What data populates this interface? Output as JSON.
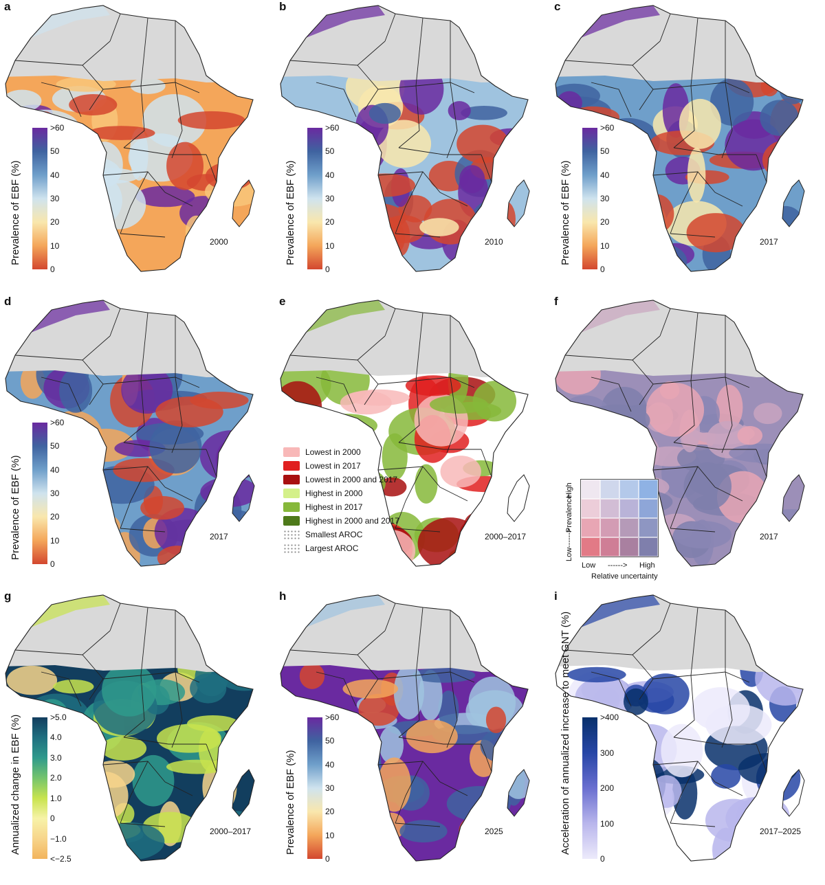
{
  "panels": [
    {
      "label": "a",
      "year": "2000",
      "scale": "ebf",
      "colorbar_title": "Prevalence of EBF (%)"
    },
    {
      "label": "b",
      "year": "2010",
      "scale": "ebf",
      "colorbar_title": "Prevalence of EBF (%)"
    },
    {
      "label": "c",
      "year": "2017",
      "scale": "ebf",
      "colorbar_title": "Prevalence of EBF (%)"
    },
    {
      "label": "d",
      "year": "2017",
      "scale": "ebf",
      "colorbar_title": "Prevalence of EBF (%)"
    },
    {
      "label": "e",
      "year": "2000–2017",
      "scale": "none",
      "colorbar_title": ""
    },
    {
      "label": "f",
      "year": "2017",
      "scale": "none",
      "colorbar_title": ""
    },
    {
      "label": "g",
      "year": "2000–2017",
      "scale": "change",
      "colorbar_title": "Annualized change in EBF (%)"
    },
    {
      "label": "h",
      "year": "2025",
      "scale": "ebf",
      "colorbar_title": "Prevalence of EBF (%)"
    },
    {
      "label": "i",
      "year": "2017–2025",
      "scale": "accel",
      "colorbar_title": "Acceleration of annualized increase to meet GNT (%)"
    }
  ],
  "scales": {
    "ebf": {
      "ticks": [
        ">60",
        "50",
        "40",
        "30",
        "20",
        "10",
        "0"
      ],
      "colors": [
        "#6a2aa0",
        "#3f63a0",
        "#6f9fca",
        "#cfe3ee",
        "#f9e7ad",
        "#f4a65a",
        "#d3472f"
      ]
    },
    "change": {
      "ticks": [
        ">5.0",
        "4.0",
        "3.0",
        "2.0",
        "1.0",
        "0",
        "−1.0",
        "<−2.5"
      ],
      "colors": [
        "#123e5e",
        "#1f6f80",
        "#2f9a8c",
        "#75c46d",
        "#c8e34e",
        "#f7f3a8",
        "#f7d58b",
        "#f2b45d"
      ]
    },
    "accel": {
      "ticks": [
        ">400",
        "300",
        "200",
        "100",
        "0"
      ],
      "colors": [
        "#08306b",
        "#2746a6",
        "#6a6fd0",
        "#b9b6ec",
        "#eceafb"
      ]
    }
  },
  "legend_e": [
    {
      "label": "Lowest in 2000",
      "color": "#f8b8b8"
    },
    {
      "label": "Lowest in 2017",
      "color": "#e02020"
    },
    {
      "label": "Lowest in 2000 and 2017",
      "color": "#a81010"
    },
    {
      "label": "Highest in 2000",
      "color": "#d4f08a"
    },
    {
      "label": "Highest in 2017",
      "color": "#86b83a"
    },
    {
      "label": "Highest in 2000 and 2017",
      "color": "#4e7a1a"
    },
    {
      "label": "Smallest AROC",
      "color": "dots"
    },
    {
      "label": "Largest AROC",
      "color": "dots"
    }
  ],
  "legend_f": {
    "y_high": "High",
    "y_mid": "Prevalence",
    "y_arrow": "------>",
    "y_low": "Low",
    "x_low": "Low",
    "x_arrow": "------>",
    "x_high": "High",
    "x_title": "Relative uncertainty",
    "colors": [
      [
        "#efe7f0",
        "#cfd7ec",
        "#b4c9ea",
        "#8fb2e4"
      ],
      [
        "#eccdd9",
        "#d2bdd5",
        "#b9b3d8",
        "#8ea6d8"
      ],
      [
        "#e8a6b4",
        "#d39cb4",
        "#b59ab8",
        "#8e96c2"
      ],
      [
        "#e27a86",
        "#cf7e96",
        "#a980a0",
        "#7f7fac"
      ]
    ]
  },
  "map_colors": {
    "a": [
      "#f4a65a",
      "#f8c67a",
      "#cfe3ee",
      "#d3472f",
      "#6a2aa0"
    ],
    "b": [
      "#9fc3df",
      "#f9e7ad",
      "#6a2aa0",
      "#3f63a0",
      "#d3472f"
    ],
    "c": [
      "#6f9fca",
      "#3f63a0",
      "#6a2aa0",
      "#f9e7ad",
      "#d3472f"
    ],
    "d": [
      "#6f9fca",
      "#3f63a0",
      "#6a2aa0",
      "#f4a65a",
      "#d3472f"
    ],
    "e": [
      "#ffffff",
      "#e02020",
      "#86b83a",
      "#f8b8b8",
      "#a81010"
    ],
    "f": [
      "#9c8fb8",
      "#8a86b4",
      "#c9a5bf",
      "#7f7fac",
      "#e8a6b4"
    ],
    "g": [
      "#123e5e",
      "#2f9a8c",
      "#c8e34e",
      "#f7d58b",
      "#1f6f80"
    ],
    "h": [
      "#6a2aa0",
      "#3f63a0",
      "#9fc3df",
      "#d3472f",
      "#f4a65a"
    ],
    "i": [
      "#ffffff",
      "#b9b6ec",
      "#2746a6",
      "#08306b",
      "#eceafb"
    ]
  },
  "sahara_color": "#d9d9d9"
}
